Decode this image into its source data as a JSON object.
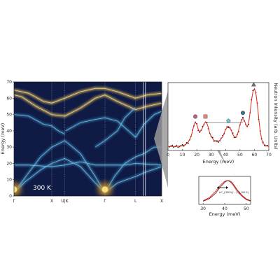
{
  "colors": {
    "map_background": "#0f1a45",
    "map_branch": "#3f8fbf",
    "map_hot": "#f5e17a",
    "panel_line": "#222222",
    "fit_line": "#e0271e",
    "data_points": "#111111",
    "connector": "#9a9a9a",
    "marker_circle_left": "#b4607e",
    "marker_square": "#e8857a",
    "marker_pentagon": "#73c6d8",
    "marker_circle_right": "#3a6f8c",
    "marker_triangle": "#707070"
  },
  "dispersion": {
    "label": "300 K",
    "ylabel": "Energy (meV)",
    "y_ticks": [
      "0",
      "10",
      "20",
      "30",
      "40",
      "50",
      "60",
      "70"
    ],
    "ylim": [
      0,
      70
    ],
    "x_ticks": [
      "Γ",
      "X",
      "U|K",
      "Γ",
      "L",
      "X"
    ],
    "x_tick_fractions": [
      0.0,
      0.256,
      0.343,
      0.616,
      0.823,
      1.0
    ],
    "path_segments": [
      "Γ-X",
      "X-U|K",
      "U|K-Γ",
      "Γ-L",
      "L-X"
    ],
    "branch_colormap": "dark navy to yellow (intensity)"
  },
  "spectrum": {
    "ylabel": "Neutron Intensity (arb. Units)",
    "xlabel": "Energy (meV)",
    "x_ticks": [
      "0",
      "10",
      "20",
      "30",
      "40",
      "50",
      "60",
      "70"
    ],
    "xlim": [
      0,
      70
    ],
    "peak_markers": [
      {
        "energy": 19,
        "shape": "circle",
        "color_key": "marker_circle_left"
      },
      {
        "energy": 26,
        "shape": "square",
        "color_key": "marker_square"
      },
      {
        "energy": 42,
        "shape": "pentagon",
        "color_key": "marker_pentagon"
      },
      {
        "energy": 52,
        "shape": "circle",
        "color_key": "marker_circle_right"
      },
      {
        "energy": 59.5,
        "shape": "triangle",
        "color_key": "marker_triangle"
      }
    ]
  },
  "inset": {
    "xlabel": "Energy (meV)",
    "x_ticks": [
      "30",
      "40",
      "50"
    ],
    "xlim": [
      28,
      52
    ],
    "annotation": "Δℱ_{300 K} - ℱ_{100 K}"
  },
  "chart_data": {
    "type": "line",
    "title": "",
    "xlabel": "Energy (meV)",
    "ylabel": "Neutron Intensity (arb. Units)",
    "xlim": [
      0,
      70
    ],
    "ylim": [
      0,
      1
    ],
    "grid": false,
    "series": [
      {
        "style": "fit (red line)",
        "x": [
          0,
          5,
          10,
          12,
          14,
          16,
          17,
          18,
          19,
          20,
          21,
          22,
          23,
          24,
          25,
          26,
          27,
          28,
          29,
          30,
          32,
          34,
          36,
          38,
          39,
          40,
          41,
          42,
          43,
          44,
          45,
          46,
          47,
          48,
          49,
          50,
          51,
          52,
          53,
          54,
          55,
          56,
          57,
          58,
          59,
          60,
          61,
          62,
          63,
          64,
          65,
          66,
          68,
          70
        ],
        "values": [
          0.02,
          0.02,
          0.03,
          0.05,
          0.09,
          0.18,
          0.27,
          0.37,
          0.42,
          0.38,
          0.3,
          0.26,
          0.28,
          0.33,
          0.39,
          0.42,
          0.4,
          0.33,
          0.24,
          0.18,
          0.12,
          0.1,
          0.12,
          0.18,
          0.24,
          0.3,
          0.33,
          0.35,
          0.33,
          0.28,
          0.22,
          0.18,
          0.17,
          0.2,
          0.28,
          0.38,
          0.45,
          0.48,
          0.45,
          0.38,
          0.34,
          0.4,
          0.58,
          0.78,
          0.92,
          0.97,
          0.9,
          0.72,
          0.48,
          0.28,
          0.14,
          0.07,
          0.03,
          0.02
        ]
      }
    ],
    "inset_series": [
      {
        "name": "",
        "x": [
          30,
          33,
          36,
          38,
          40,
          41,
          42,
          43,
          44,
          46,
          48,
          50,
          52
        ],
        "values": [
          0.1,
          0.25,
          0.55,
          0.8,
          0.97,
          1.0,
          0.98,
          0.9,
          0.78,
          0.5,
          0.3,
          0.15,
          0.08
        ]
      },
      {
        "name": "",
        "x": [
          30,
          33,
          36,
          38,
          40,
          41,
          42,
          43,
          44,
          46,
          48,
          50,
          52
        ],
        "values": [
          0.08,
          0.2,
          0.46,
          0.72,
          0.92,
          0.99,
          1.0,
          0.95,
          0.84,
          0.56,
          0.34,
          0.18,
          0.1
        ]
      }
    ]
  }
}
